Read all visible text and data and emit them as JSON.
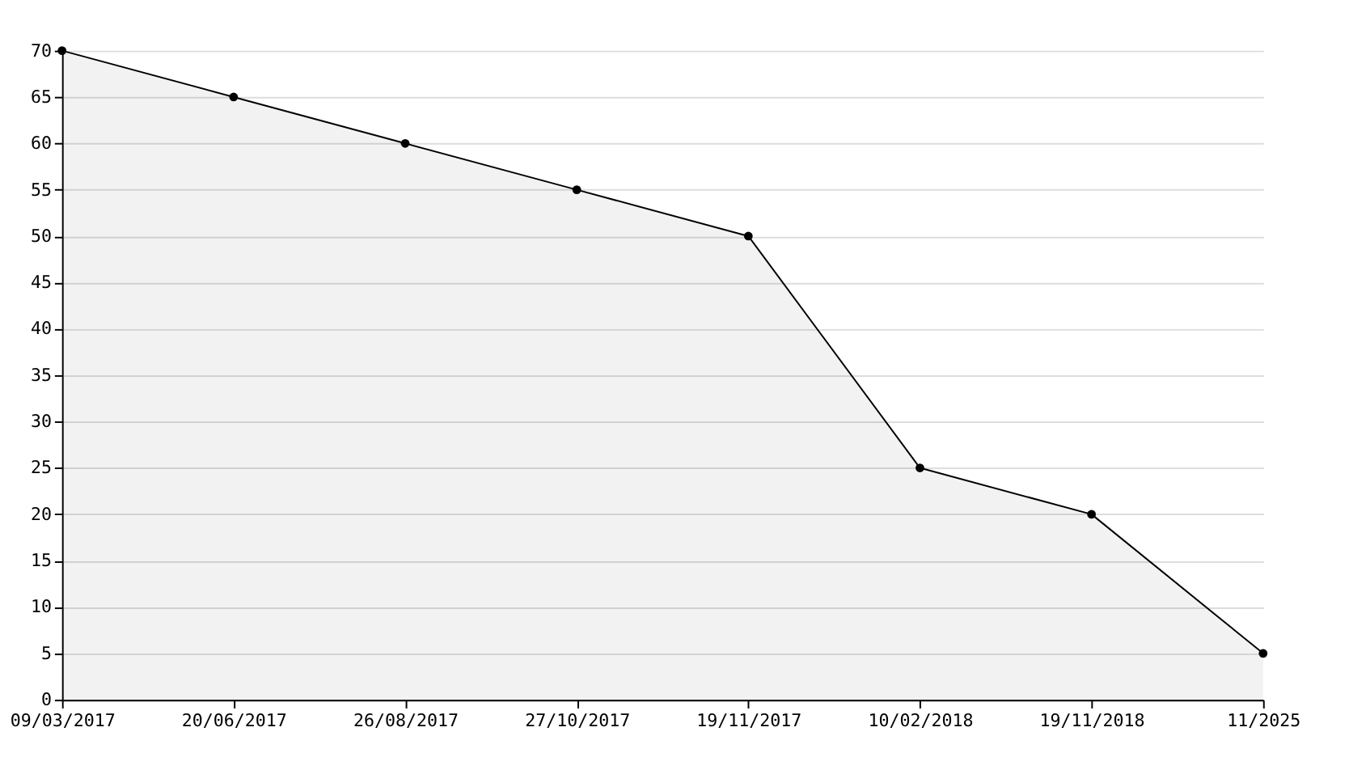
{
  "chart_data": {
    "type": "area",
    "categories": [
      "09/03/2017",
      "20/06/2017",
      "26/08/2017",
      "27/10/2017",
      "19/11/2017",
      "10/02/2018",
      "19/11/2018",
      "11/2025"
    ],
    "series": [
      {
        "color": "#000000",
        "values": [
          70,
          65,
          60,
          55,
          50,
          25,
          20,
          5
        ]
      }
    ],
    "ylim": [
      0,
      70
    ],
    "yticks": [
      0,
      5,
      10,
      15,
      20,
      25,
      30,
      35,
      40,
      45,
      50,
      55,
      60,
      65,
      70
    ],
    "grid": "y",
    "marker": "circle",
    "line_style": "solid"
  }
}
